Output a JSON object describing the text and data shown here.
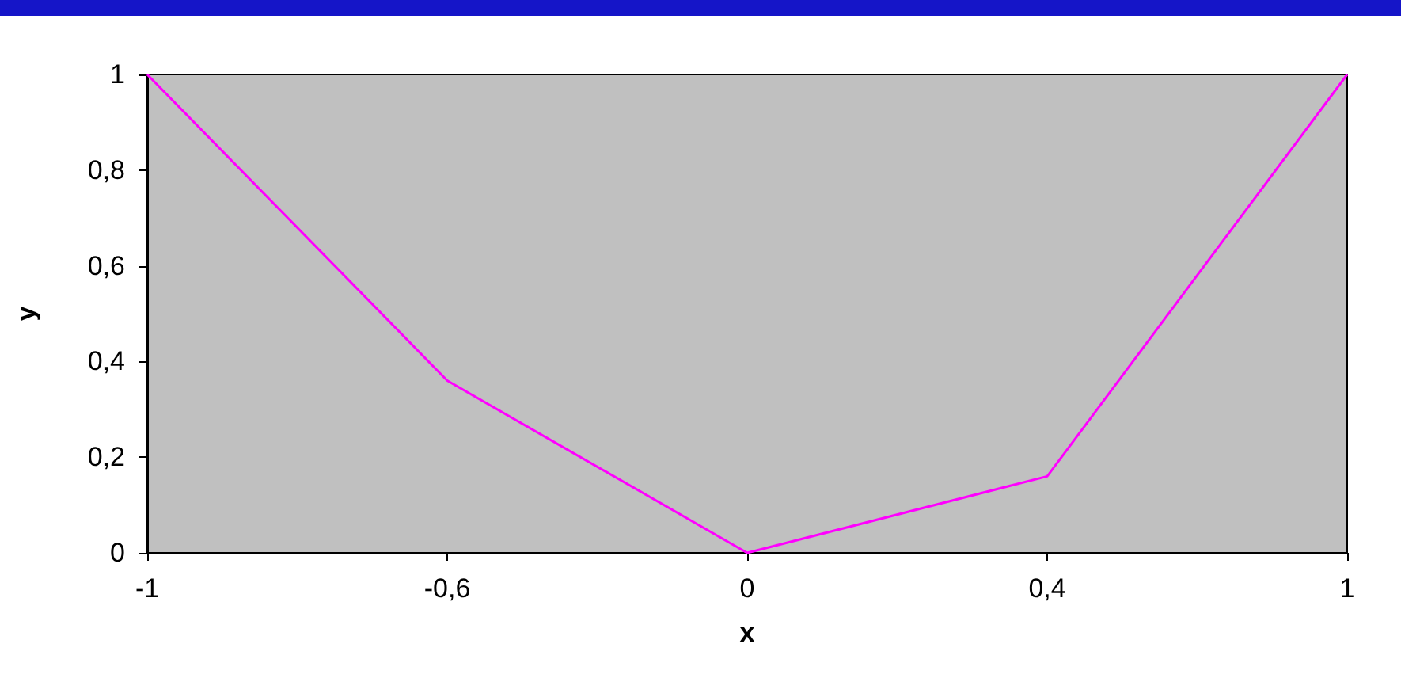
{
  "chart_data": {
    "type": "line",
    "xlabel": "x",
    "ylabel": "y",
    "categories": [
      "-1",
      "-0,6",
      "0",
      "0,4",
      "1"
    ],
    "series": [
      {
        "color": "#ff00ff",
        "values": [
          1,
          0.36,
          0,
          0.16,
          1
        ]
      }
    ],
    "ylim": [
      0,
      1
    ],
    "yticks": [
      0,
      {
        "value": 0.2,
        "label": "0,2"
      },
      {
        "value": 0.4,
        "label": "0,4"
      },
      {
        "value": 0.6,
        "label": "0,6"
      },
      {
        "value": 0.8,
        "label": "0,8"
      },
      1
    ],
    "grid": false,
    "marker": "none",
    "line_style": "solid"
  }
}
